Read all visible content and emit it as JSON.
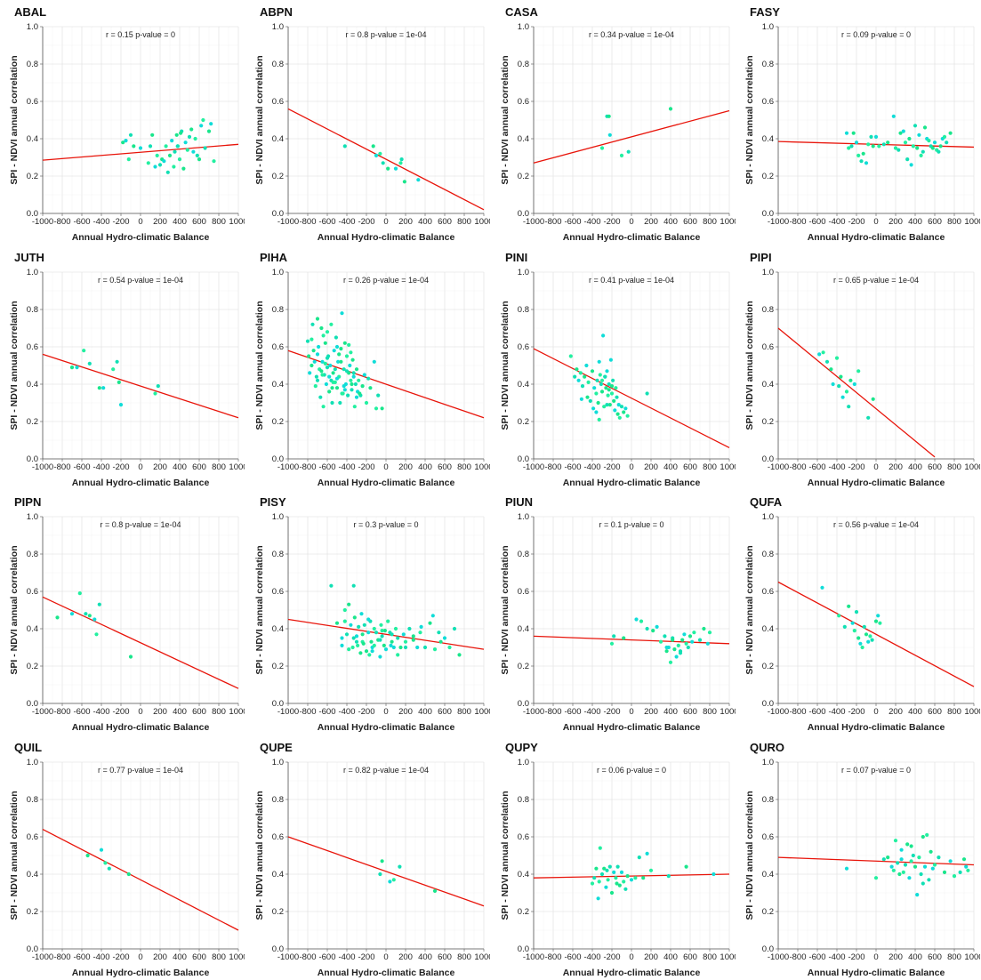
{
  "axes": {
    "xlabel": "Annual Hydro-climatic Balance",
    "ylabel": "SPI - NDVI annual correlation",
    "xlim": [
      -1000,
      1000
    ],
    "ylim": [
      0,
      1
    ],
    "xticks": [
      "-1000",
      "-800",
      "-600",
      "-400",
      "-200",
      "0",
      "200",
      "400",
      "600",
      "800",
      "1000"
    ],
    "yticks": [
      "0.0",
      "0.2",
      "0.4",
      "0.6",
      "0.8",
      "1.0"
    ],
    "grid": true
  },
  "colors": {
    "line": "#e8140a",
    "points": [
      "#19e68c",
      "#11e0b4",
      "#22f0a0",
      "#10ddd8"
    ]
  },
  "chart_data": [
    {
      "type": "scatter",
      "title": "ABAL",
      "annotation": "r = 0.15   p-value = 0",
      "trend": {
        "x": [
          -1000,
          1000
        ],
        "y": [
          0.285,
          0.37
        ]
      },
      "x": [
        -180,
        -150,
        -120,
        -100,
        -70,
        0,
        80,
        100,
        120,
        150,
        170,
        200,
        220,
        240,
        260,
        280,
        300,
        320,
        340,
        350,
        370,
        380,
        400,
        420,
        440,
        460,
        480,
        500,
        520,
        540,
        560,
        580,
        600,
        620,
        640,
        660,
        700,
        720,
        750,
        380,
        410
      ],
      "y": [
        0.38,
        0.39,
        0.29,
        0.42,
        0.36,
        0.35,
        0.27,
        0.36,
        0.42,
        0.25,
        0.31,
        0.26,
        0.29,
        0.28,
        0.36,
        0.22,
        0.31,
        0.39,
        0.25,
        0.33,
        0.42,
        0.36,
        0.29,
        0.44,
        0.24,
        0.38,
        0.34,
        0.41,
        0.45,
        0.33,
        0.4,
        0.31,
        0.29,
        0.47,
        0.5,
        0.35,
        0.44,
        0.48,
        0.28,
        0.36,
        0.43
      ]
    },
    {
      "type": "scatter",
      "title": "ABPN",
      "annotation": "r = 0.8   p-value = 1e-04",
      "trend": {
        "x": [
          -1000,
          1000
        ],
        "y": [
          0.56,
          0.02
        ]
      },
      "x": [
        -420,
        -130,
        -100,
        -60,
        -30,
        20,
        100,
        150,
        160,
        190,
        330
      ],
      "y": [
        0.36,
        0.36,
        0.31,
        0.32,
        0.27,
        0.24,
        0.24,
        0.27,
        0.29,
        0.17,
        0.18
      ]
    },
    {
      "type": "scatter",
      "title": "CASA",
      "annotation": "r = 0.34   p-value = 1e-04",
      "trend": {
        "x": [
          -1000,
          1000
        ],
        "y": [
          0.27,
          0.55
        ]
      },
      "x": [
        -300,
        -250,
        -230,
        -220,
        -100,
        -30,
        400
      ],
      "y": [
        0.35,
        0.52,
        0.52,
        0.42,
        0.31,
        0.33,
        0.56
      ]
    },
    {
      "type": "scatter",
      "title": "FASY",
      "annotation": "r = 0.09   p-value = 0",
      "trend": {
        "x": [
          -1000,
          1000
        ],
        "y": [
          0.385,
          0.355
        ]
      },
      "x": [
        -300,
        -280,
        -250,
        -230,
        -200,
        -180,
        -150,
        -130,
        -100,
        -80,
        -50,
        -30,
        0,
        30,
        80,
        120,
        180,
        200,
        230,
        250,
        280,
        300,
        320,
        340,
        360,
        380,
        400,
        420,
        440,
        460,
        480,
        500,
        520,
        540,
        560,
        580,
        600,
        620,
        640,
        660,
        680,
        700,
        720,
        760
      ],
      "y": [
        0.43,
        0.35,
        0.36,
        0.43,
        0.38,
        0.31,
        0.28,
        0.32,
        0.27,
        0.37,
        0.41,
        0.36,
        0.41,
        0.36,
        0.37,
        0.38,
        0.52,
        0.35,
        0.34,
        0.43,
        0.44,
        0.38,
        0.29,
        0.4,
        0.26,
        0.36,
        0.47,
        0.35,
        0.42,
        0.31,
        0.33,
        0.46,
        0.4,
        0.39,
        0.36,
        0.35,
        0.38,
        0.34,
        0.33,
        0.36,
        0.4,
        0.41,
        0.38,
        0.43
      ]
    },
    {
      "type": "scatter",
      "title": "JUTH",
      "annotation": "r = 0.54   p-value = 1e-04",
      "trend": {
        "x": [
          -1000,
          1000
        ],
        "y": [
          0.56,
          0.22
        ]
      },
      "x": [
        -700,
        -650,
        -580,
        -520,
        -420,
        -380,
        -280,
        -240,
        -220,
        -200,
        150,
        180
      ],
      "y": [
        0.49,
        0.49,
        0.58,
        0.51,
        0.38,
        0.38,
        0.48,
        0.52,
        0.41,
        0.29,
        0.35,
        0.39
      ]
    },
    {
      "type": "scatter",
      "title": "PIHA",
      "annotation": "r = 0.26   p-value = 1e-04",
      "trend": {
        "x": [
          -1000,
          1000
        ],
        "y": [
          0.58,
          0.22
        ]
      },
      "x": [
        -800,
        -790,
        -780,
        -760,
        -750,
        -740,
        -730,
        -720,
        -710,
        -700,
        -690,
        -680,
        -670,
        -660,
        -650,
        -640,
        -630,
        -620,
        -610,
        -600,
        -590,
        -580,
        -570,
        -560,
        -550,
        -540,
        -530,
        -520,
        -510,
        -500,
        -490,
        -480,
        -470,
        -460,
        -450,
        -440,
        -430,
        -420,
        -410,
        -400,
        -390,
        -380,
        -370,
        -360,
        -350,
        -340,
        -330,
        -320,
        -310,
        -300,
        -290,
        -280,
        -260,
        -240,
        -220,
        -200,
        -180,
        -160,
        -120,
        -100,
        -80,
        -40,
        -700,
        -650,
        -600,
        -550,
        -500,
        -450,
        -400,
        -350,
        -300,
        -620,
        -560,
        -480,
        -430,
        -380,
        -520,
        -460,
        -580,
        -640,
        -700,
        -760,
        -420,
        -360,
        -330,
        -270,
        -500,
        -540,
        -600,
        -660
      ],
      "y": [
        0.63,
        0.55,
        0.46,
        0.64,
        0.72,
        0.58,
        0.52,
        0.39,
        0.44,
        0.75,
        0.6,
        0.48,
        0.33,
        0.7,
        0.52,
        0.28,
        0.45,
        0.62,
        0.4,
        0.68,
        0.55,
        0.36,
        0.5,
        0.72,
        0.3,
        0.46,
        0.58,
        0.41,
        0.65,
        0.38,
        0.52,
        0.44,
        0.3,
        0.59,
        0.78,
        0.35,
        0.48,
        0.62,
        0.4,
        0.55,
        0.34,
        0.46,
        0.5,
        0.42,
        0.37,
        0.53,
        0.44,
        0.28,
        0.4,
        0.48,
        0.36,
        0.42,
        0.34,
        0.39,
        0.45,
        0.3,
        0.43,
        0.38,
        0.52,
        0.27,
        0.34,
        0.27,
        0.56,
        0.45,
        0.49,
        0.38,
        0.43,
        0.35,
        0.47,
        0.4,
        0.33,
        0.51,
        0.42,
        0.56,
        0.39,
        0.61,
        0.48,
        0.52,
        0.44,
        0.66,
        0.42,
        0.5,
        0.37,
        0.57,
        0.46,
        0.35,
        0.6,
        0.41,
        0.54,
        0.47
      ]
    },
    {
      "type": "scatter",
      "title": "PINI",
      "annotation": "r = 0.41   p-value = 1e-04",
      "trend": {
        "x": [
          -1000,
          1000
        ],
        "y": [
          0.59,
          0.06
        ]
      },
      "x": [
        -620,
        -580,
        -560,
        -540,
        -520,
        -500,
        -480,
        -460,
        -440,
        -420,
        -400,
        -380,
        -360,
        -350,
        -340,
        -330,
        -320,
        -310,
        -300,
        -290,
        -280,
        -270,
        -260,
        -250,
        -240,
        -230,
        -220,
        -210,
        -200,
        -190,
        -180,
        -170,
        -160,
        -150,
        -140,
        -130,
        -120,
        -100,
        -80,
        -60,
        -40,
        160,
        -450,
        -390,
        -330,
        -270,
        -230,
        -510,
        -300,
        -250,
        -200,
        -360
      ],
      "y": [
        0.55,
        0.44,
        0.48,
        0.42,
        0.46,
        0.39,
        0.44,
        0.5,
        0.41,
        0.31,
        0.47,
        0.38,
        0.35,
        0.42,
        0.3,
        0.52,
        0.45,
        0.4,
        0.36,
        0.66,
        0.28,
        0.44,
        0.38,
        0.47,
        0.34,
        0.4,
        0.29,
        0.53,
        0.35,
        0.42,
        0.31,
        0.26,
        0.38,
        0.33,
        0.24,
        0.29,
        0.22,
        0.28,
        0.25,
        0.27,
        0.23,
        0.35,
        0.33,
        0.27,
        0.21,
        0.44,
        0.37,
        0.32,
        0.42,
        0.29,
        0.39,
        0.25
      ]
    },
    {
      "type": "scatter",
      "title": "PIPI",
      "annotation": "r = 0.65   p-value = 1e-04",
      "trend": {
        "x": [
          -1000,
          600
        ],
        "y": [
          0.7,
          0.01
        ]
      },
      "x": [
        -580,
        -540,
        -500,
        -460,
        -440,
        -400,
        -380,
        -360,
        -340,
        -300,
        -280,
        -260,
        -220,
        -180,
        -80,
        -30
      ],
      "y": [
        0.56,
        0.57,
        0.52,
        0.48,
        0.4,
        0.54,
        0.39,
        0.44,
        0.33,
        0.36,
        0.28,
        0.42,
        0.4,
        0.47,
        0.22,
        0.32
      ]
    },
    {
      "type": "scatter",
      "title": "PIPN",
      "annotation": "r = 0.8   p-value = 1e-04",
      "trend": {
        "x": [
          -1000,
          1000
        ],
        "y": [
          0.57,
          0.08
        ]
      },
      "x": [
        -850,
        -700,
        -620,
        -560,
        -520,
        -470,
        -450,
        -420,
        -100
      ],
      "y": [
        0.46,
        0.48,
        0.59,
        0.48,
        0.47,
        0.45,
        0.37,
        0.53,
        0.25
      ]
    },
    {
      "type": "scatter",
      "title": "PISY",
      "annotation": "r = 0.3   p-value = 0",
      "trend": {
        "x": [
          -1000,
          1000
        ],
        "y": [
          0.45,
          0.29
        ]
      },
      "x": [
        -560,
        -500,
        -450,
        -420,
        -400,
        -380,
        -360,
        -340,
        -330,
        -320,
        -300,
        -290,
        -280,
        -260,
        -250,
        -240,
        -220,
        -200,
        -180,
        -170,
        -160,
        -150,
        -140,
        -120,
        -100,
        -80,
        -60,
        -50,
        -40,
        -20,
        0,
        20,
        40,
        60,
        80,
        100,
        120,
        150,
        180,
        200,
        240,
        280,
        320,
        350,
        400,
        450,
        480,
        500,
        540,
        560,
        600,
        650,
        700,
        750,
        -450,
        -380,
        -300,
        -240,
        -180,
        -120,
        -60,
        -10,
        50,
        120,
        200,
        280,
        360,
        -420,
        -330,
        -230,
        -140,
        -40,
        60
      ],
      "y": [
        0.63,
        0.43,
        0.31,
        0.5,
        0.37,
        0.53,
        0.42,
        0.3,
        0.63,
        0.46,
        0.36,
        0.31,
        0.41,
        0.27,
        0.48,
        0.33,
        0.42,
        0.28,
        0.38,
        0.26,
        0.44,
        0.33,
        0.3,
        0.4,
        0.38,
        0.34,
        0.25,
        0.42,
        0.36,
        0.31,
        0.29,
        0.44,
        0.38,
        0.33,
        0.3,
        0.4,
        0.35,
        0.3,
        0.37,
        0.33,
        0.4,
        0.34,
        0.3,
        0.38,
        0.3,
        0.43,
        0.47,
        0.29,
        0.38,
        0.33,
        0.35,
        0.3,
        0.4,
        0.26,
        0.35,
        0.29,
        0.33,
        0.37,
        0.45,
        0.31,
        0.34,
        0.39,
        0.31,
        0.26,
        0.3,
        0.36,
        0.41,
        0.44,
        0.35,
        0.32,
        0.28,
        0.39,
        0.37
      ]
    },
    {
      "type": "scatter",
      "title": "PIUN",
      "annotation": "r = 0.1   p-value = 0",
      "trend": {
        "x": [
          -1000,
          1000
        ],
        "y": [
          0.36,
          0.32
        ]
      },
      "x": [
        -200,
        -180,
        -80,
        50,
        100,
        160,
        220,
        260,
        300,
        340,
        360,
        380,
        400,
        420,
        440,
        460,
        480,
        500,
        520,
        540,
        560,
        580,
        600,
        620,
        640,
        700,
        740,
        780,
        800,
        500,
        420,
        360
      ],
      "y": [
        0.32,
        0.36,
        0.35,
        0.45,
        0.44,
        0.4,
        0.39,
        0.41,
        0.33,
        0.36,
        0.28,
        0.3,
        0.22,
        0.35,
        0.29,
        0.25,
        0.31,
        0.28,
        0.34,
        0.37,
        0.32,
        0.3,
        0.36,
        0.33,
        0.38,
        0.34,
        0.4,
        0.32,
        0.38,
        0.27,
        0.34,
        0.3
      ]
    },
    {
      "type": "scatter",
      "title": "QUFA",
      "annotation": "r = 0.56   p-value = 1e-04",
      "trend": {
        "x": [
          -1000,
          1000
        ],
        "y": [
          0.65,
          0.09
        ]
      },
      "x": [
        -550,
        -380,
        -320,
        -280,
        -240,
        -220,
        -200,
        -180,
        -160,
        -140,
        -120,
        -100,
        -80,
        -60,
        -40,
        0,
        20,
        40
      ],
      "y": [
        0.62,
        0.47,
        0.41,
        0.52,
        0.43,
        0.39,
        0.49,
        0.35,
        0.32,
        0.3,
        0.41,
        0.37,
        0.33,
        0.36,
        0.34,
        0.44,
        0.47,
        0.43
      ]
    },
    {
      "type": "scatter",
      "title": "QUIL",
      "annotation": "r = 0.77   p-value = 1e-04",
      "trend": {
        "x": [
          -1000,
          1000
        ],
        "y": [
          0.64,
          0.1
        ]
      },
      "x": [
        -540,
        -400,
        -360,
        -320,
        -120
      ],
      "y": [
        0.5,
        0.53,
        0.46,
        0.43,
        0.4
      ]
    },
    {
      "type": "scatter",
      "title": "QUPE",
      "annotation": "r = 0.82   p-value = 1e-04",
      "trend": {
        "x": [
          -1000,
          1000
        ],
        "y": [
          0.6,
          0.23
        ]
      },
      "x": [
        -60,
        -40,
        40,
        80,
        140,
        500
      ],
      "y": [
        0.4,
        0.47,
        0.36,
        0.37,
        0.44,
        0.31
      ]
    },
    {
      "type": "scatter",
      "title": "QUPY",
      "annotation": "r = 0.06   p-value = 0",
      "trend": {
        "x": [
          -1000,
          1000
        ],
        "y": [
          0.38,
          0.4
        ]
      },
      "x": [
        -400,
        -380,
        -360,
        -340,
        -320,
        -300,
        -280,
        -260,
        -240,
        -220,
        -200,
        -180,
        -160,
        -140,
        -120,
        -100,
        -80,
        -60,
        -40,
        0,
        40,
        80,
        120,
        160,
        200,
        380,
        560,
        840,
        -330,
        -250,
        -150
      ],
      "y": [
        0.35,
        0.38,
        0.43,
        0.27,
        0.54,
        0.4,
        0.43,
        0.33,
        0.37,
        0.44,
        0.3,
        0.41,
        0.38,
        0.44,
        0.34,
        0.41,
        0.36,
        0.32,
        0.39,
        0.37,
        0.38,
        0.49,
        0.38,
        0.51,
        0.42,
        0.39,
        0.44,
        0.4,
        0.36,
        0.42,
        0.35
      ]
    },
    {
      "type": "scatter",
      "title": "QURO",
      "annotation": "r = 0.07   p-value = 0",
      "trend": {
        "x": [
          -1000,
          1000
        ],
        "y": [
          0.49,
          0.45
        ]
      },
      "x": [
        -300,
        0,
        80,
        120,
        160,
        200,
        220,
        240,
        260,
        280,
        300,
        320,
        340,
        360,
        380,
        400,
        420,
        440,
        460,
        480,
        500,
        520,
        540,
        560,
        580,
        600,
        640,
        700,
        760,
        800,
        860,
        900,
        920,
        940,
        480,
        360,
        260,
        180
      ],
      "y": [
        0.43,
        0.38,
        0.48,
        0.49,
        0.44,
        0.58,
        0.46,
        0.4,
        0.53,
        0.41,
        0.45,
        0.56,
        0.38,
        0.47,
        0.5,
        0.44,
        0.29,
        0.49,
        0.4,
        0.6,
        0.44,
        0.61,
        0.37,
        0.52,
        0.43,
        0.45,
        0.49,
        0.41,
        0.47,
        0.39,
        0.41,
        0.48,
        0.44,
        0.42,
        0.35,
        0.55,
        0.48,
        0.42
      ]
    }
  ]
}
